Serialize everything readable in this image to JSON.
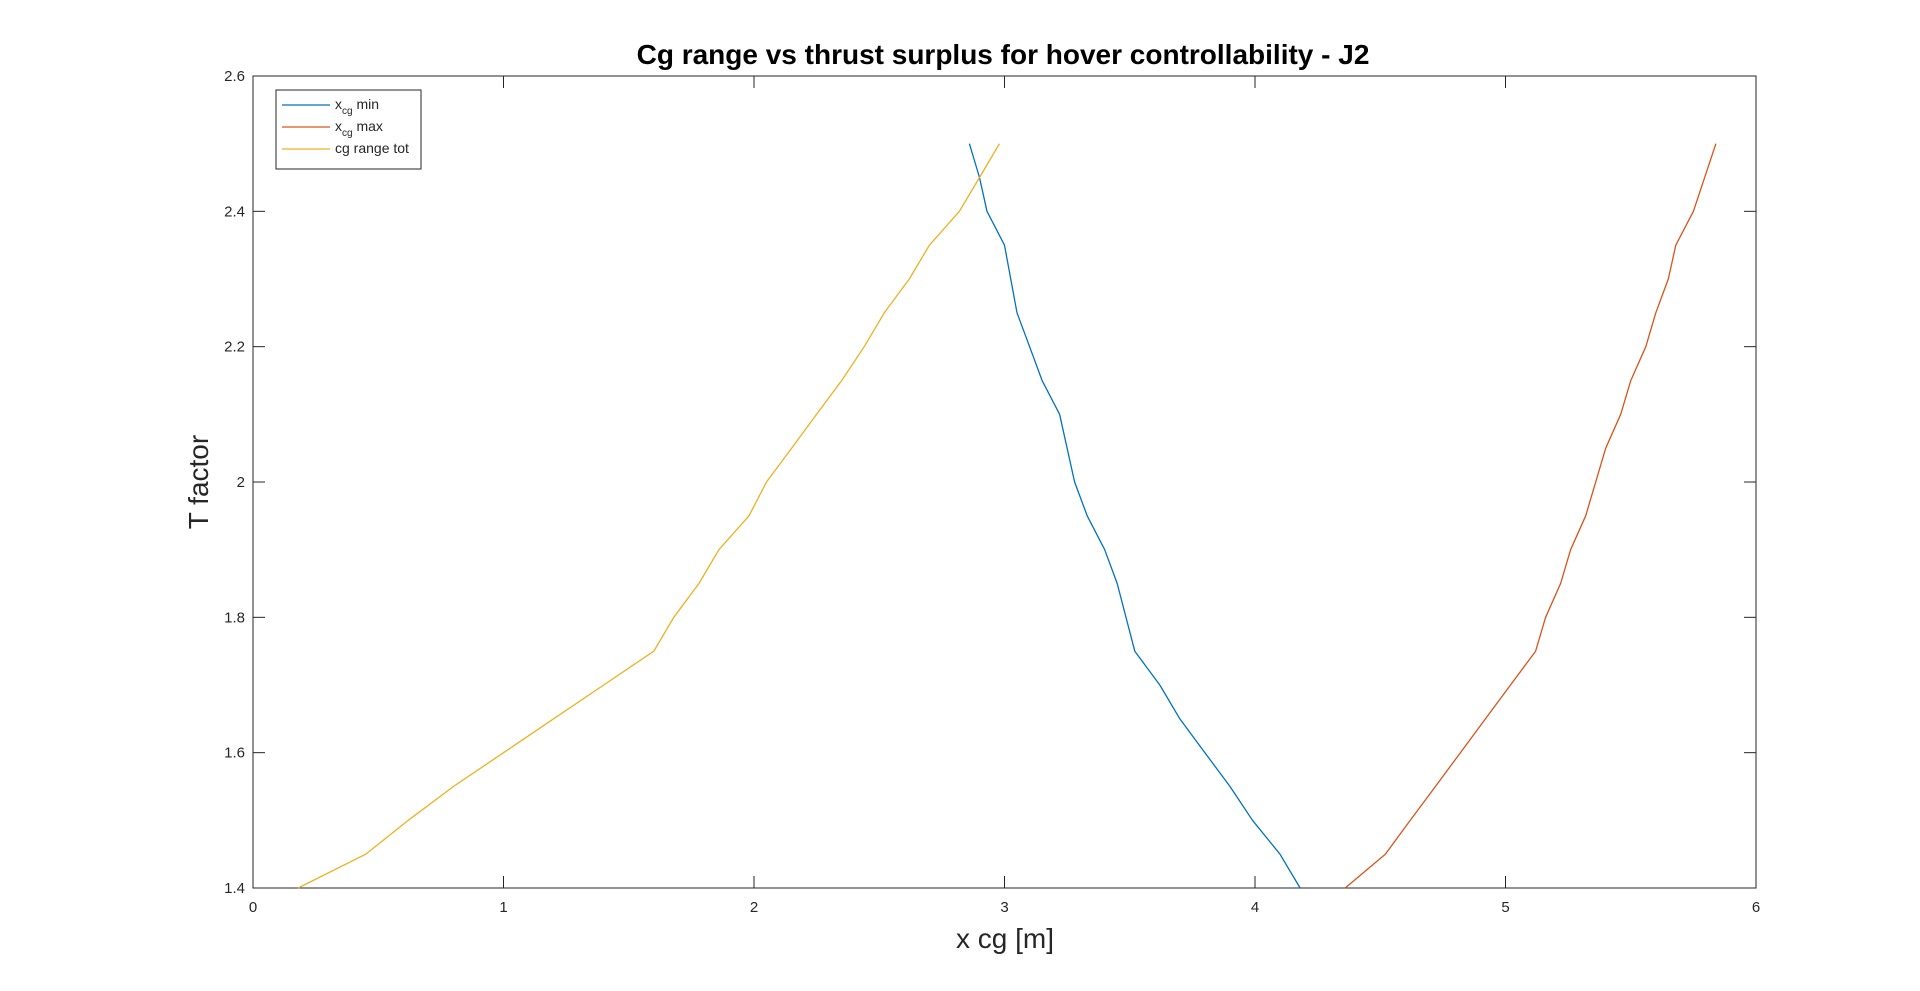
{
  "chart_data": {
    "type": "line",
    "title": "Cg range vs thrust surplus for hover controllability - J2",
    "xlabel": "x cg [m]",
    "ylabel": "T factor",
    "xlim": [
      0,
      6
    ],
    "ylim": [
      1.4,
      2.6
    ],
    "xticks": [
      0,
      1,
      2,
      3,
      4,
      5,
      6
    ],
    "yticks": [
      1.4,
      1.6,
      1.8,
      2.0,
      2.2,
      2.4,
      2.6
    ],
    "xtick_labels": [
      "0",
      "1",
      "2",
      "3",
      "4",
      "5",
      "6"
    ],
    "ytick_labels": [
      "1.4",
      "1.6",
      "1.8",
      "2",
      "2.2",
      "2.4",
      "2.6"
    ],
    "grid": false,
    "legend": {
      "placement": "top-left",
      "entries": [
        {
          "base": "x",
          "sub": "cg",
          "suffix": " min"
        },
        {
          "base": "x",
          "sub": "cg",
          "suffix": " max"
        },
        {
          "base": "cg range tot",
          "sub": "",
          "suffix": ""
        }
      ]
    },
    "series": [
      {
        "color": "#0072BD",
        "points": [
          [
            4.18,
            1.4
          ],
          [
            4.1,
            1.45
          ],
          [
            3.99,
            1.5
          ],
          [
            3.9,
            1.55
          ],
          [
            3.8,
            1.6
          ],
          [
            3.7,
            1.65
          ],
          [
            3.62,
            1.7
          ],
          [
            3.52,
            1.75
          ],
          [
            3.45,
            1.85
          ],
          [
            3.4,
            1.9
          ],
          [
            3.33,
            1.95
          ],
          [
            3.28,
            2.0
          ],
          [
            3.22,
            2.1
          ],
          [
            3.15,
            2.15
          ],
          [
            3.1,
            2.2
          ],
          [
            3.05,
            2.25
          ],
          [
            3.0,
            2.35
          ],
          [
            2.93,
            2.4
          ],
          [
            2.9,
            2.45
          ],
          [
            2.86,
            2.5
          ]
        ]
      },
      {
        "color": "#D95319",
        "points": [
          [
            4.36,
            1.4
          ],
          [
            4.52,
            1.45
          ],
          [
            4.62,
            1.5
          ],
          [
            4.72,
            1.55
          ],
          [
            4.82,
            1.6
          ],
          [
            4.92,
            1.65
          ],
          [
            5.02,
            1.7
          ],
          [
            5.12,
            1.75
          ],
          [
            5.16,
            1.8
          ],
          [
            5.22,
            1.85
          ],
          [
            5.26,
            1.9
          ],
          [
            5.32,
            1.95
          ],
          [
            5.4,
            2.05
          ],
          [
            5.46,
            2.1
          ],
          [
            5.5,
            2.15
          ],
          [
            5.56,
            2.2
          ],
          [
            5.6,
            2.25
          ],
          [
            5.65,
            2.3
          ],
          [
            5.68,
            2.35
          ],
          [
            5.75,
            2.4
          ],
          [
            5.84,
            2.5
          ]
        ]
      },
      {
        "color": "#EDB120",
        "points": [
          [
            0.18,
            1.4
          ],
          [
            0.45,
            1.45
          ],
          [
            0.62,
            1.5
          ],
          [
            0.8,
            1.55
          ],
          [
            1.0,
            1.6
          ],
          [
            1.2,
            1.65
          ],
          [
            1.4,
            1.7
          ],
          [
            1.6,
            1.75
          ],
          [
            1.68,
            1.8
          ],
          [
            1.78,
            1.85
          ],
          [
            1.86,
            1.9
          ],
          [
            1.98,
            1.95
          ],
          [
            2.05,
            2.0
          ],
          [
            2.15,
            2.05
          ],
          [
            2.25,
            2.1
          ],
          [
            2.35,
            2.15
          ],
          [
            2.44,
            2.2
          ],
          [
            2.52,
            2.25
          ],
          [
            2.62,
            2.3
          ],
          [
            2.7,
            2.35
          ],
          [
            2.82,
            2.4
          ],
          [
            2.9,
            2.45
          ],
          [
            2.98,
            2.5
          ]
        ]
      }
    ]
  }
}
